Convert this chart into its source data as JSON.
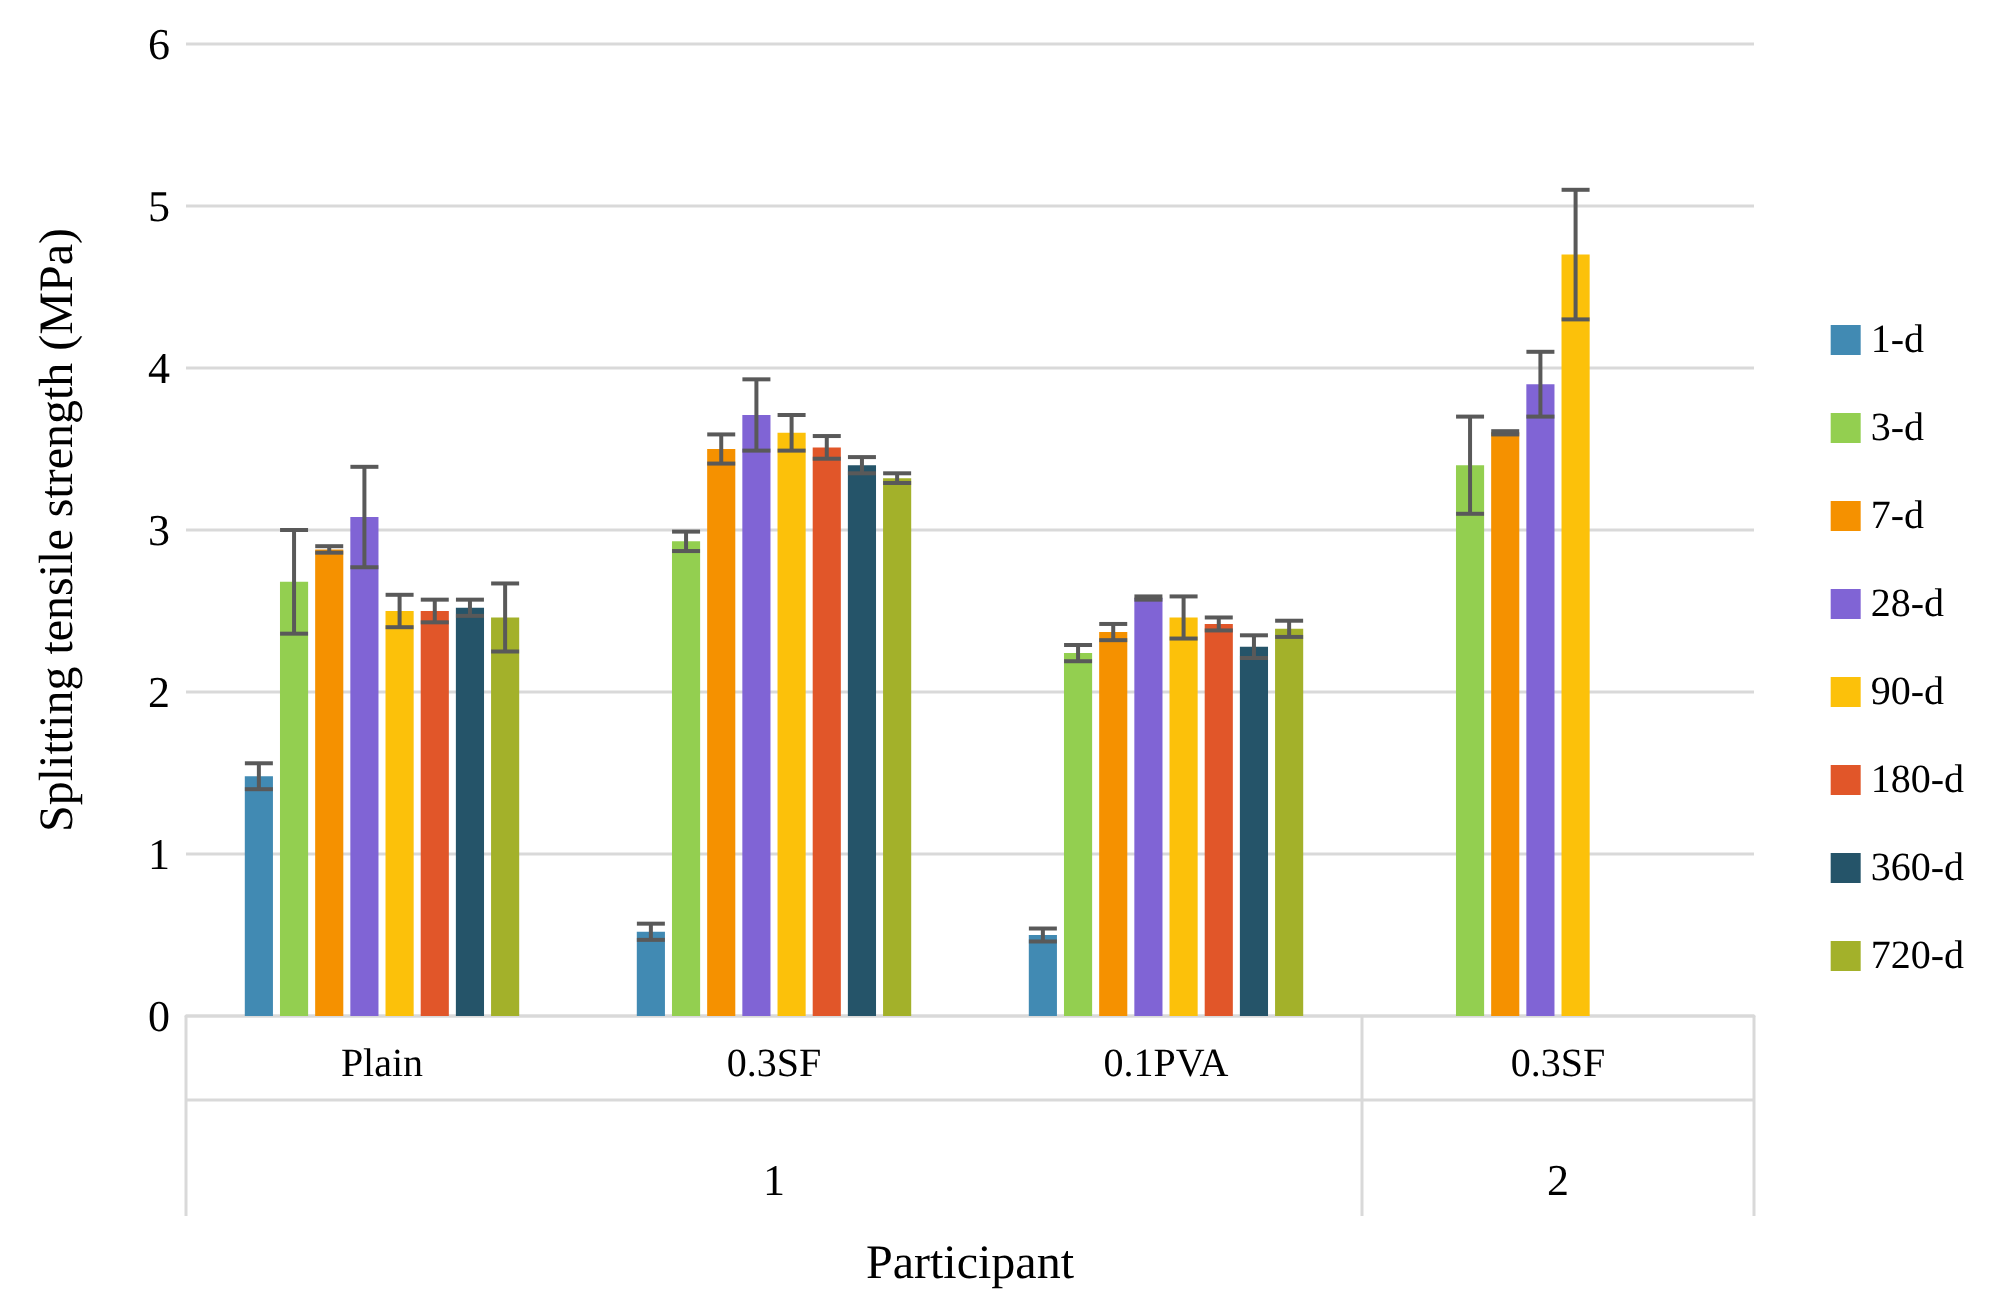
{
  "chart_data": {
    "type": "bar",
    "xlabel": "Participant",
    "ylabel": "Splitting tensile strength (MPa)",
    "categories": [
      "Plain",
      "0.3SF",
      "0.1PVA",
      "0.3SF"
    ],
    "annotations": [
      "1",
      "2"
    ],
    "ylim": [
      0,
      6
    ],
    "yticks": [
      0,
      1,
      2,
      3,
      4,
      5,
      6
    ],
    "grid": "y",
    "legend": "right",
    "series": [
      {
        "name": "1-d",
        "color": "#418ab3",
        "values": [
          1.48,
          0.52,
          0.5,
          null
        ],
        "errors": [
          0.08,
          0.05,
          0.04,
          null
        ]
      },
      {
        "name": "3-d",
        "color": "#93cf50",
        "values": [
          2.68,
          2.93,
          2.24,
          3.4
        ],
        "errors": [
          0.32,
          0.06,
          0.05,
          0.3
        ]
      },
      {
        "name": "7-d",
        "color": "#f59100",
        "values": [
          2.88,
          3.5,
          2.37,
          3.6
        ],
        "errors": [
          0.02,
          0.09,
          0.05,
          0.01
        ]
      },
      {
        "name": "28-d",
        "color": "#8064d5",
        "values": [
          3.08,
          3.71,
          2.58,
          3.9
        ],
        "errors": [
          0.31,
          0.22,
          0.01,
          0.2
        ]
      },
      {
        "name": "90-d",
        "color": "#fcc10a",
        "values": [
          2.5,
          3.6,
          2.46,
          4.7
        ],
        "errors": [
          0.1,
          0.11,
          0.13,
          0.4
        ]
      },
      {
        "name": "180-d",
        "color": "#e15629",
        "values": [
          2.5,
          3.51,
          2.42,
          null
        ],
        "errors": [
          0.07,
          0.07,
          0.04,
          null
        ]
      },
      {
        "name": "360-d",
        "color": "#255469",
        "values": [
          2.52,
          3.4,
          2.28,
          null
        ],
        "errors": [
          0.05,
          0.05,
          0.07,
          null
        ]
      },
      {
        "name": "720-d",
        "color": "#a3b12a",
        "values": [
          2.46,
          3.32,
          2.39,
          null
        ],
        "errors": [
          0.21,
          0.03,
          0.05,
          null
        ]
      }
    ]
  }
}
